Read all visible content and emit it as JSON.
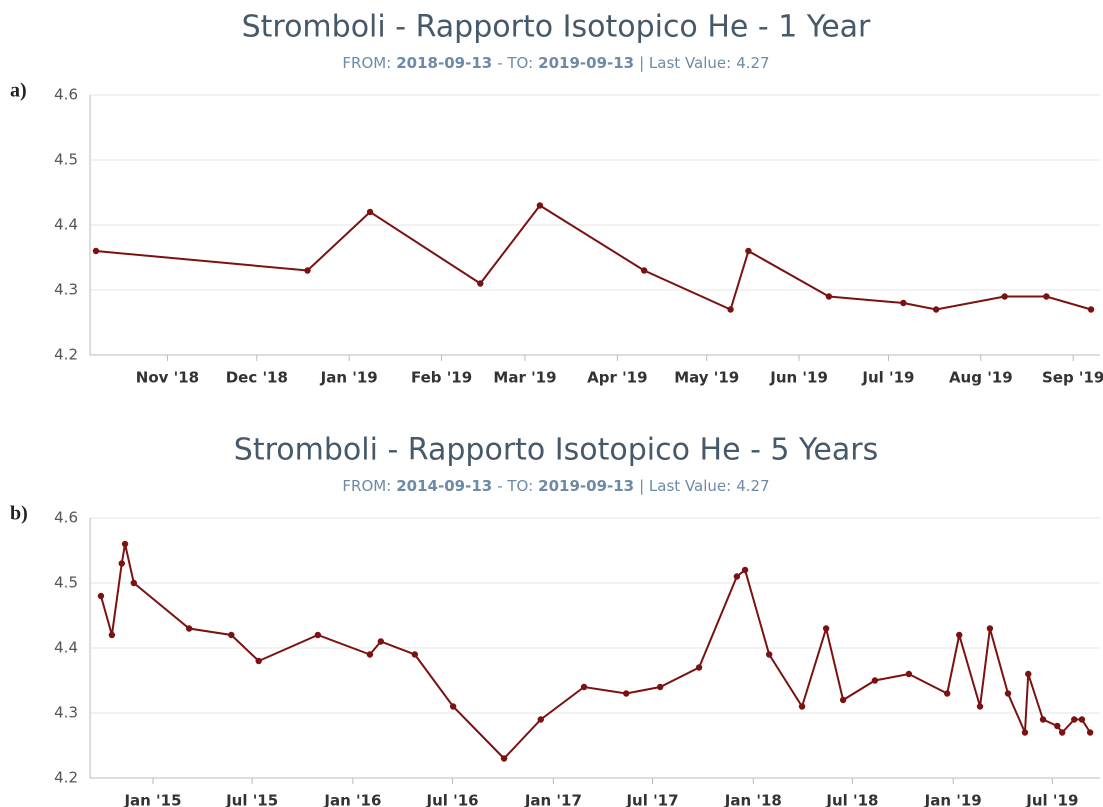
{
  "chart_data": [
    {
      "type": "line",
      "panel": "a)",
      "title": "Stromboli - Rapporto Isotopico He - 1 Year",
      "subtitle": {
        "from_label": "FROM:",
        "from": "2018-09-13",
        "to_label": "- TO:",
        "to": "2019-09-13",
        "last_label": "| Last Value:",
        "last_value": 4.27
      },
      "xlim": [
        "2018-10-06",
        "2019-09-10"
      ],
      "xticks": [
        {
          "value": "2018-11-01",
          "label": "Nov '18"
        },
        {
          "value": "2018-12-01",
          "label": "Dec '18"
        },
        {
          "value": "2019-01-01",
          "label": "Jan '19"
        },
        {
          "value": "2019-02-01",
          "label": "Feb '19"
        },
        {
          "value": "2019-03-01",
          "label": "Mar '19"
        },
        {
          "value": "2019-04-01",
          "label": "Apr '19"
        },
        {
          "value": "2019-05-01",
          "label": "May '19"
        },
        {
          "value": "2019-06-01",
          "label": "Jun '19"
        },
        {
          "value": "2019-07-01",
          "label": "Jul '19"
        },
        {
          "value": "2019-08-01",
          "label": "Aug '19"
        },
        {
          "value": "2019-09-01",
          "label": "Sep '19"
        }
      ],
      "ylim": [
        4.2,
        4.6
      ],
      "yticks": [
        4.2,
        4.3,
        4.4,
        4.5,
        4.6
      ],
      "grid": true,
      "color": "#7a1212",
      "x": [
        "2018-10-08",
        "2018-12-18",
        "2019-01-08",
        "2019-02-14",
        "2019-03-06",
        "2019-04-10",
        "2019-05-09",
        "2019-05-15",
        "2019-06-11",
        "2019-07-06",
        "2019-07-17",
        "2019-08-09",
        "2019-08-23",
        "2019-09-07"
      ],
      "values": [
        4.36,
        4.33,
        4.42,
        4.31,
        4.43,
        4.33,
        4.27,
        4.36,
        4.29,
        4.28,
        4.27,
        4.29,
        4.29,
        4.27
      ]
    },
    {
      "type": "line",
      "panel": "b)",
      "title": "Stromboli - Rapporto Isotopico He - 5 Years",
      "subtitle": {
        "from_label": "FROM:",
        "from": "2014-09-13",
        "to_label": "- TO:",
        "to": "2019-09-13",
        "last_label": "| Last Value:",
        "last_value": 4.27
      },
      "xlim": [
        "2014-09-08",
        "2019-09-26"
      ],
      "xticks": [
        {
          "value": "2015-01-01",
          "label": "Jan '15"
        },
        {
          "value": "2015-07-01",
          "label": "Jul '15"
        },
        {
          "value": "2016-01-01",
          "label": "Jan '16"
        },
        {
          "value": "2016-07-01",
          "label": "Jul '16"
        },
        {
          "value": "2017-01-01",
          "label": "Jan '17"
        },
        {
          "value": "2017-07-01",
          "label": "Jul '17"
        },
        {
          "value": "2018-01-01",
          "label": "Jan '18"
        },
        {
          "value": "2018-07-01",
          "label": "Jul '18"
        },
        {
          "value": "2019-01-01",
          "label": "Jan '19"
        },
        {
          "value": "2019-07-01",
          "label": "Jul '19"
        }
      ],
      "ylim": [
        4.2,
        4.6
      ],
      "yticks": [
        4.2,
        4.3,
        4.4,
        4.5,
        4.6
      ],
      "grid": true,
      "color": "#7a1212",
      "x": [
        "2014-09-28",
        "2014-10-18",
        "2014-11-05",
        "2014-11-11",
        "2014-11-27",
        "2015-03-08",
        "2015-05-24",
        "2015-07-13",
        "2015-10-29",
        "2016-02-01",
        "2016-02-21",
        "2016-04-23",
        "2016-07-02",
        "2016-10-03",
        "2016-12-09",
        "2017-02-26",
        "2017-05-14",
        "2017-07-15",
        "2017-09-24",
        "2017-12-02",
        "2017-12-17",
        "2018-01-30",
        "2018-03-31",
        "2018-05-14",
        "2018-06-14",
        "2018-08-11",
        "2018-10-12",
        "2018-12-21",
        "2019-01-12",
        "2019-02-19",
        "2019-03-09",
        "2019-04-11",
        "2019-05-12",
        "2019-05-18",
        "2019-06-14",
        "2019-07-10",
        "2019-07-19",
        "2019-08-10",
        "2019-08-24",
        "2019-09-08"
      ],
      "values": [
        4.48,
        4.42,
        4.53,
        4.56,
        4.5,
        4.43,
        4.42,
        4.38,
        4.42,
        4.39,
        4.41,
        4.39,
        4.31,
        4.23,
        4.29,
        4.34,
        4.33,
        4.34,
        4.37,
        4.51,
        4.52,
        4.39,
        4.31,
        4.43,
        4.32,
        4.35,
        4.36,
        4.33,
        4.42,
        4.31,
        4.43,
        4.33,
        4.27,
        4.36,
        4.29,
        4.28,
        4.27,
        4.29,
        4.29,
        4.27
      ]
    }
  ]
}
